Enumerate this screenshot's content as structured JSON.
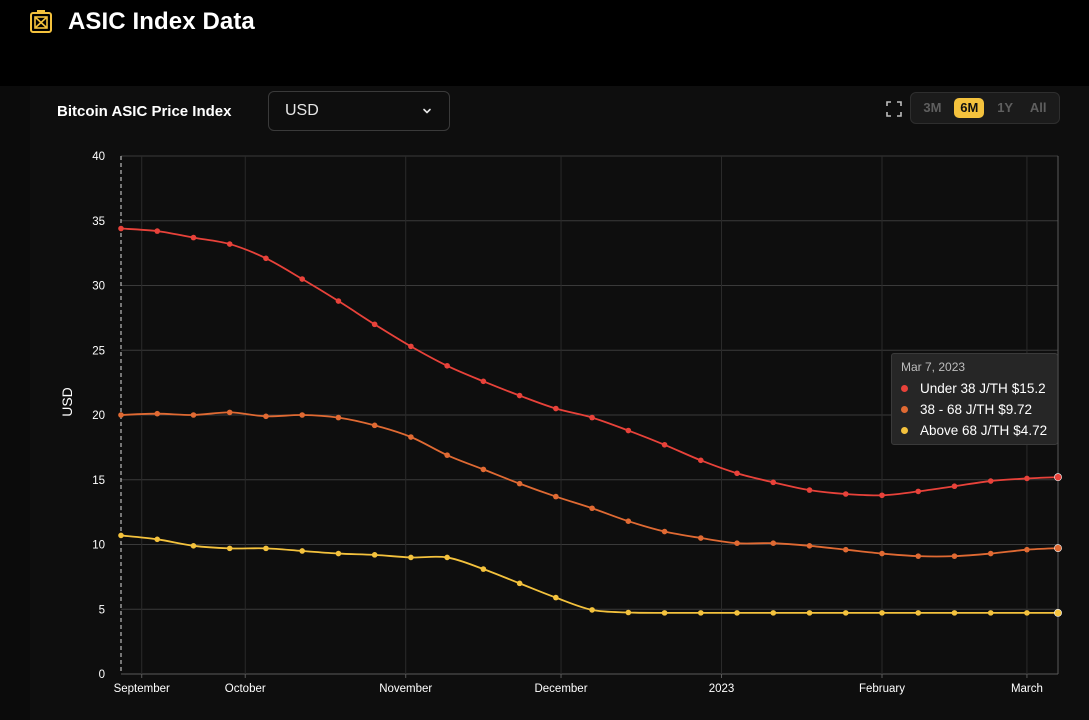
{
  "header": {
    "title": "ASIC Index Data",
    "logo_icon": "asic-chip-icon"
  },
  "card": {
    "title": "Bitcoin ASIC Price Index",
    "currency_select": {
      "value": "USD"
    },
    "expand_icon": "expand-icon",
    "ranges": [
      {
        "label": "3M",
        "active": false
      },
      {
        "label": "6M",
        "active": true
      },
      {
        "label": "1Y",
        "active": false
      },
      {
        "label": "All",
        "active": false
      }
    ]
  },
  "colors": {
    "under": "#e8423a",
    "mid": "#e06a33",
    "above": "#f4c23d",
    "accent": "#f4c23d"
  },
  "chart_data": {
    "type": "line",
    "ylabel": "USD",
    "ylim": [
      0,
      40
    ],
    "y_ticks": [
      0,
      5,
      10,
      15,
      20,
      25,
      30,
      35,
      40
    ],
    "x_start": "2022-09-07",
    "x_end": "2023-03-07",
    "x_ticks": [
      {
        "date": "2022-09-11",
        "label": "September"
      },
      {
        "date": "2022-10-01",
        "label": "October"
      },
      {
        "date": "2022-11-01",
        "label": "November"
      },
      {
        "date": "2022-12-01",
        "label": "December"
      },
      {
        "date": "2023-01-01",
        "label": "2023"
      },
      {
        "date": "2023-02-01",
        "label": "February"
      },
      {
        "date": "2023-03-01",
        "label": "March"
      }
    ],
    "x": [
      "2022-09-07",
      "2022-09-14",
      "2022-09-21",
      "2022-09-28",
      "2022-10-05",
      "2022-10-12",
      "2022-10-19",
      "2022-10-26",
      "2022-11-02",
      "2022-11-09",
      "2022-11-16",
      "2022-11-23",
      "2022-11-30",
      "2022-12-07",
      "2022-12-14",
      "2022-12-21",
      "2022-12-28",
      "2023-01-04",
      "2023-01-11",
      "2023-01-18",
      "2023-01-25",
      "2023-02-01",
      "2023-02-08",
      "2023-02-15",
      "2023-02-22",
      "2023-03-01",
      "2023-03-07"
    ],
    "series": [
      {
        "name": "Under 38 J/TH",
        "color": "#e8423a",
        "values": [
          34.4,
          34.2,
          33.7,
          33.2,
          32.1,
          30.5,
          28.8,
          27.0,
          25.3,
          23.8,
          22.6,
          21.5,
          20.5,
          19.8,
          18.8,
          17.7,
          16.5,
          15.5,
          14.8,
          14.2,
          13.9,
          13.8,
          14.1,
          14.5,
          14.9,
          15.1,
          15.2
        ]
      },
      {
        "name": "38 - 68 J/TH",
        "color": "#e06a33",
        "values": [
          20.0,
          20.1,
          20.0,
          20.2,
          19.9,
          20.0,
          19.8,
          19.2,
          18.3,
          16.9,
          15.8,
          14.7,
          13.7,
          12.8,
          11.8,
          11.0,
          10.5,
          10.1,
          10.1,
          9.9,
          9.6,
          9.3,
          9.1,
          9.1,
          9.3,
          9.6,
          9.72
        ]
      },
      {
        "name": "Above 68 J/TH",
        "color": "#f4c23d",
        "values": [
          10.7,
          10.4,
          9.9,
          9.7,
          9.7,
          9.5,
          9.3,
          9.2,
          9.0,
          9.0,
          8.1,
          7.0,
          5.9,
          4.95,
          4.75,
          4.72,
          4.72,
          4.72,
          4.72,
          4.72,
          4.72,
          4.72,
          4.72,
          4.72,
          4.72,
          4.72,
          4.72
        ]
      }
    ],
    "grid": true,
    "tooltip": {
      "date": "Mar 7, 2023",
      "rows": [
        {
          "label": "Under 38 J/TH",
          "value": "$15.2"
        },
        {
          "label": "38 - 68 J/TH",
          "value": "$9.72"
        },
        {
          "label": "Above 68 J/TH",
          "value": "$4.72"
        }
      ]
    }
  }
}
